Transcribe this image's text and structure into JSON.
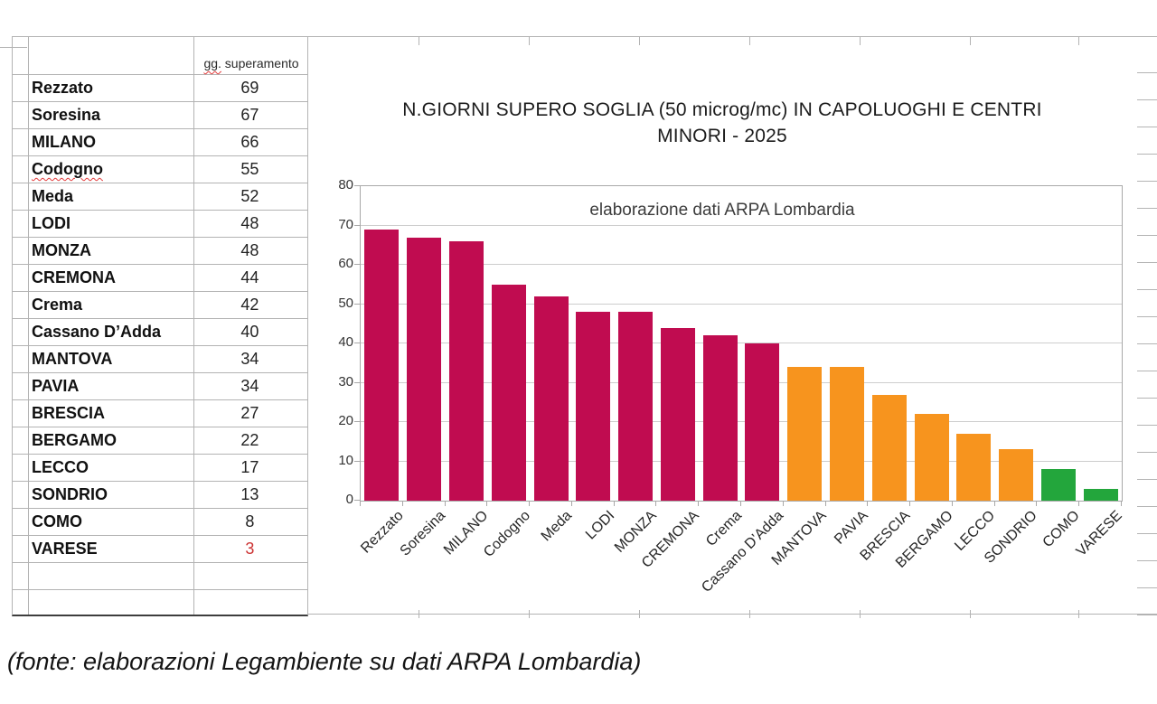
{
  "table": {
    "header": {
      "prefix": "gg.",
      "rest": " superamento"
    },
    "rows": [
      {
        "name": "Rezzato",
        "value": "69"
      },
      {
        "name": "Soresina",
        "value": "67"
      },
      {
        "name": "MILANO",
        "value": "66"
      },
      {
        "name": "Codogno",
        "value": "55",
        "spellcheck": true
      },
      {
        "name": "Meda",
        "value": "52"
      },
      {
        "name": "LODI",
        "value": "48"
      },
      {
        "name": "MONZA",
        "value": "48"
      },
      {
        "name": "CREMONA",
        "value": "44"
      },
      {
        "name": "Crema",
        "value": "42"
      },
      {
        "name": "Cassano D’Adda",
        "value": "40"
      },
      {
        "name": "MANTOVA",
        "value": "34"
      },
      {
        "name": "PAVIA",
        "value": "34"
      },
      {
        "name": "BRESCIA",
        "value": "27"
      },
      {
        "name": "BERGAMO",
        "value": "22"
      },
      {
        "name": "LECCO",
        "value": "17"
      },
      {
        "name": "SONDRIO",
        "value": "13"
      },
      {
        "name": "COMO",
        "value": "8"
      },
      {
        "name": "VARESE",
        "value": "3",
        "value_color": "#CC3333"
      }
    ],
    "empty_rows": 2
  },
  "chart_data": {
    "type": "bar",
    "title": "N.GIORNI SUPERO SOGLIA (50 microg/mc) IN CAPOLUOGHI E CENTRI MINORI - 2025",
    "subtitle": "elaborazione dati ARPA Lombardia",
    "categories": [
      "Rezzato",
      "Soresina",
      "MILANO",
      "Codogno",
      "Meda",
      "LODI",
      "MONZA",
      "CREMONA",
      "Crema",
      "Cassano D’Adda",
      "MANTOVA",
      "PAVIA",
      "BRESCIA",
      "BERGAMO",
      "LECCO",
      "SONDRIO",
      "COMO",
      "VARESE"
    ],
    "values": [
      69,
      67,
      66,
      55,
      52,
      48,
      48,
      44,
      42,
      40,
      34,
      34,
      27,
      22,
      17,
      13,
      8,
      3
    ],
    "bar_colors": [
      "#C00C50",
      "#C00C50",
      "#C00C50",
      "#C00C50",
      "#C00C50",
      "#C00C50",
      "#C00C50",
      "#C00C50",
      "#C00C50",
      "#C00C50",
      "#F7941E",
      "#F7941E",
      "#F7941E",
      "#F7941E",
      "#F7941E",
      "#F7941E",
      "#23A63C",
      "#23A63C"
    ],
    "color_legend": {
      "high": "#C00C50",
      "mid": "#F7941E",
      "low": "#23A63C"
    },
    "ylim": [
      0,
      80
    ],
    "yticks": [
      0,
      10,
      20,
      30,
      40,
      50,
      60,
      70,
      80
    ],
    "grid": true,
    "legend_shown": false
  },
  "footer": {
    "source": "(fonte: elaborazioni Legambiente su dati ARPA Lombardia)"
  }
}
